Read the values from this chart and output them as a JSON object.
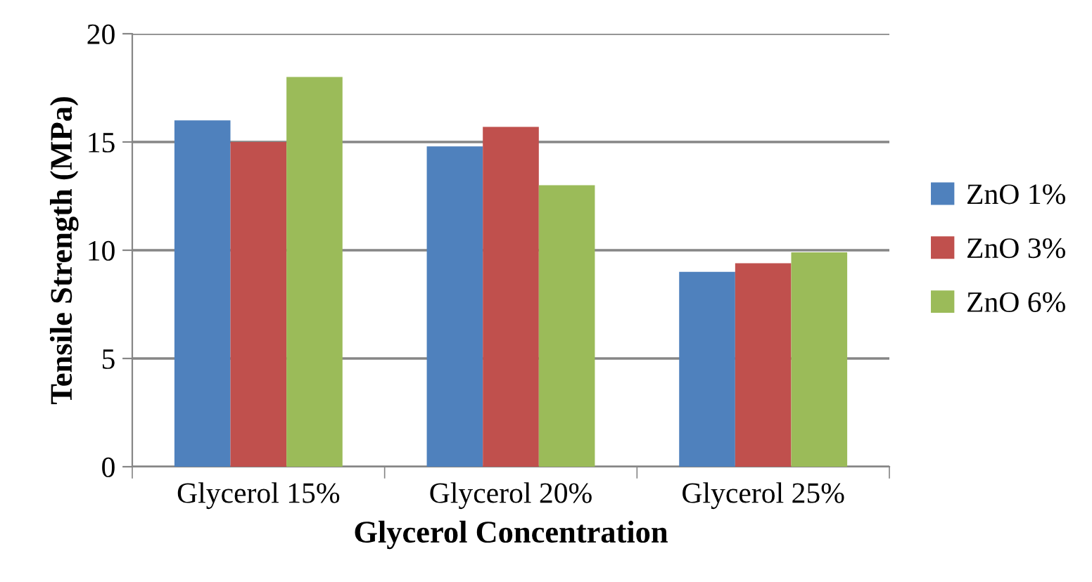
{
  "chart_data": {
    "type": "bar",
    "xlabel": "Glycerol Concentration",
    "ylabel": "Tensile Strength (MPa)",
    "categories": [
      "Glycerol 15%",
      "Glycerol 20%",
      "Glycerol 25%"
    ],
    "series": [
      {
        "name": "ZnO 1%",
        "color": "#4f81bd",
        "values": [
          16.0,
          14.8,
          9.0
        ]
      },
      {
        "name": "ZnO 3%",
        "color": "#c0504d",
        "values": [
          15.0,
          15.7,
          9.4
        ]
      },
      {
        "name": "ZnO 6%",
        "color": "#9bbb59",
        "values": [
          18.0,
          13.0,
          9.9
        ]
      }
    ],
    "ylim": [
      0,
      20
    ],
    "yticks": [
      0,
      5,
      10,
      15,
      20
    ],
    "grid": "y",
    "legend": "right"
  }
}
